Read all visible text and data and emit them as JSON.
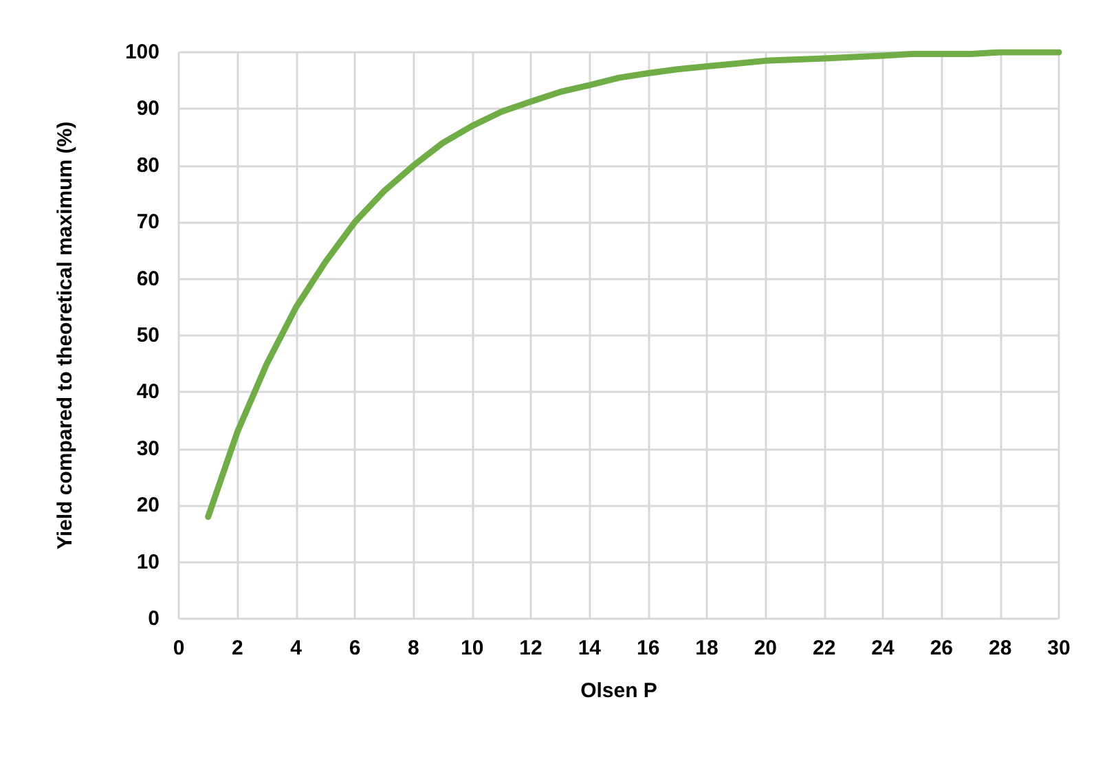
{
  "chart_data": {
    "type": "line",
    "xlabel": "Olsen P",
    "ylabel": "Yield compared to theoretical maximum (%)",
    "x": [
      1,
      2,
      3,
      4,
      5,
      6,
      7,
      8,
      9,
      10,
      11,
      12,
      13,
      14,
      15,
      16,
      17,
      18,
      19,
      20,
      22,
      24,
      25,
      26,
      27,
      28,
      30
    ],
    "series": [
      {
        "color": "#70ad47",
        "values": [
          18,
          33,
          45,
          55,
          63,
          70,
          75.5,
          80,
          84,
          87,
          89.5,
          91.3,
          93,
          94.2,
          95.5,
          96.3,
          97,
          97.5,
          98,
          98.5,
          98.9,
          99.4,
          99.7,
          99.7,
          99.7,
          100,
          100
        ]
      }
    ],
    "xlim": [
      0,
      30
    ],
    "xticks": [
      0,
      2,
      4,
      6,
      8,
      10,
      12,
      14,
      16,
      18,
      20,
      22,
      24,
      26,
      28,
      30
    ],
    "ylim": [
      0,
      100
    ],
    "yticks": [
      0,
      10,
      20,
      30,
      40,
      50,
      60,
      70,
      80,
      90,
      100
    ],
    "grid": true,
    "marker": "none",
    "line_style": "solid"
  }
}
